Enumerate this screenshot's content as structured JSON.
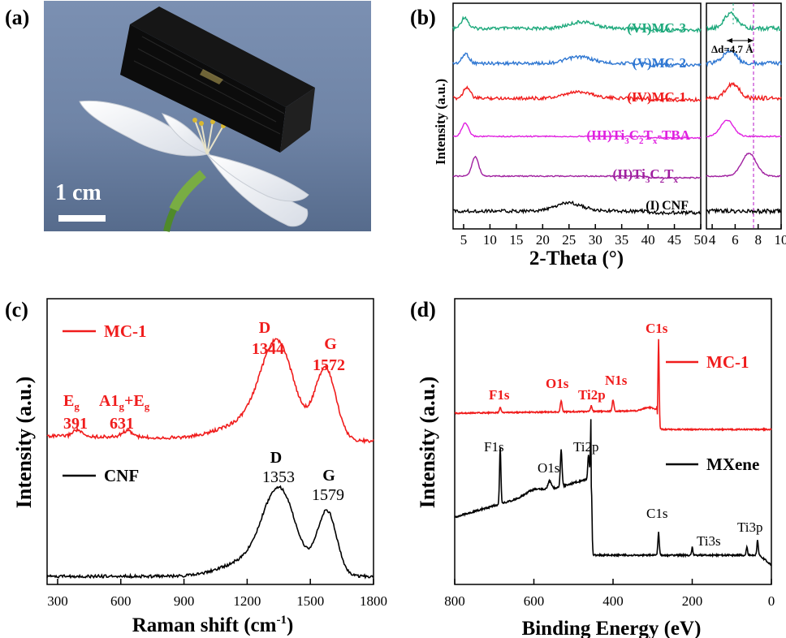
{
  "panels": {
    "a": {
      "label": "(a)",
      "scale_bar_label": "1 cm"
    },
    "b": {
      "label": "(b)",
      "ylabel": "Intensity (a.u.)",
      "xlabel": "2-Theta (°)",
      "xticks": [
        "5",
        "10",
        "15",
        "20",
        "25",
        "30",
        "35",
        "40",
        "45",
        "50"
      ],
      "inset_xticks": [
        "4",
        "6",
        "8",
        "10"
      ],
      "inset_annotation": "Δd=4.7 Å",
      "series": [
        {
          "roman": "(VI)",
          "name": "MC-3",
          "color": "#1ea97c",
          "peaks": [
            5.2,
            27.5
          ],
          "inset_peak": 5.6
        },
        {
          "roman": "(V)",
          "name": "MC-2",
          "color": "#2f77d2",
          "peaks": [
            5.4,
            27.0
          ],
          "inset_peak": 5.5
        },
        {
          "roman": "(IV)",
          "name": "MC-1",
          "color": "#f01c1c",
          "peaks": [
            5.6,
            27.0
          ],
          "inset_peak": 5.8
        },
        {
          "roman": "(III)",
          "name_main": "Ti",
          "sub1": "3",
          "mid": "C",
          "sub2": "2",
          "mid2": "T",
          "sub3": "x",
          "suffix": "-TBA",
          "color": "#e020e0",
          "peaks": [
            5.3
          ],
          "inset_peak": 5.3
        },
        {
          "roman": "(II)",
          "name_main": "Ti",
          "sub1": "3",
          "mid": "C",
          "sub2": "2",
          "mid2": "T",
          "sub3": "x",
          "suffix": "",
          "color": "#a020a0",
          "peaks": [
            7.2
          ],
          "inset_peak": 7.2
        },
        {
          "roman": "(I)",
          "name": "CNF",
          "color": "#000000",
          "peaks": [
            25.0
          ],
          "inset_peak": null
        }
      ]
    },
    "c": {
      "label": "(c)",
      "xlabel_main": "Raman shift (cm",
      "xlabel_sup": "-1",
      "xlabel_end": ")",
      "ylabel": "Intensity (a.u.)",
      "xticks": [
        "300",
        "600",
        "900",
        "1200",
        "1500",
        "1800"
      ],
      "legend_mc1": "MC-1",
      "legend_cnf": "CNF",
      "mc1_annotations": {
        "eg_main": "E",
        "eg_sub": "g",
        "eg_value": "391",
        "a1_main": "A1",
        "a1_sub": "g",
        "a1_plus": "+E",
        "a1_sub2": "g",
        "a1_value": "631",
        "d_label": "D",
        "d_value": "1344",
        "g_label": "G",
        "g_value": "1572"
      },
      "cnf_annotations": {
        "d_label": "D",
        "d_value": "1353",
        "g_label": "G",
        "g_value": "1579"
      }
    },
    "d": {
      "label": "(d)",
      "xlabel": "Binding Energy (eV)",
      "ylabel": "Intensity (a.u.)",
      "xticks": [
        "800",
        "600",
        "400",
        "200",
        "0"
      ],
      "legend_mc1": "MC-1",
      "legend_mxene": "MXene",
      "mc1_peaks": {
        "f1s": "F1s",
        "o1s": "O1s",
        "ti2p": "Ti2p",
        "n1s": "N1s",
        "c1s": "C1s"
      },
      "mxene_peaks": {
        "f1s": "F1s",
        "o1s": "O1s",
        "ti2p": "Ti2p",
        "c1s": "C1s",
        "ti3s": "Ti3s",
        "ti3p": "Ti3p"
      }
    }
  },
  "chart_data": [
    {
      "type": "line",
      "panel": "b",
      "xlabel": "2-Theta (°)",
      "ylabel": "Intensity (a.u.)",
      "xlim": [
        3,
        50
      ],
      "series": [
        {
          "name": "(VI)MC-3",
          "peaks_2theta": [
            5.2,
            27.5
          ]
        },
        {
          "name": "(V)MC-2",
          "peaks_2theta": [
            5.4,
            27.0
          ]
        },
        {
          "name": "(IV)MC-1",
          "peaks_2theta": [
            5.6,
            27.0
          ]
        },
        {
          "name": "(III)Ti3C2Tx-TBA",
          "peaks_2theta": [
            5.3
          ]
        },
        {
          "name": "(II)Ti3C2Tx",
          "peaks_2theta": [
            7.2
          ]
        },
        {
          "name": "(I)CNF",
          "peaks_2theta": [
            25.0
          ]
        }
      ]
    },
    {
      "type": "line",
      "panel": "c",
      "xlabel": "Raman shift (cm-1)",
      "ylabel": "Intensity (a.u.)",
      "xlim": [
        250,
        1800
      ],
      "series": [
        {
          "name": "MC-1",
          "peaks": {
            "Eg": 391,
            "A1g+Eg": 631,
            "D": 1344,
            "G": 1572
          }
        },
        {
          "name": "CNF",
          "peaks": {
            "D": 1353,
            "G": 1579
          }
        }
      ]
    },
    {
      "type": "line",
      "panel": "d",
      "xlabel": "Binding Energy (eV)",
      "ylabel": "Intensity (a.u.)",
      "xlim": [
        800,
        0
      ],
      "series": [
        {
          "name": "MC-1",
          "peaks_eV": {
            "F1s": 685,
            "O1s": 531,
            "Ti2p": 455,
            "N1s": 400,
            "C1s": 285
          }
        },
        {
          "name": "MXene",
          "peaks_eV": {
            "F1s": 685,
            "O1s": 531,
            "Ti2p": 455,
            "C1s": 285,
            "Ti3s": 62,
            "Ti3p": 35
          }
        }
      ]
    }
  ]
}
